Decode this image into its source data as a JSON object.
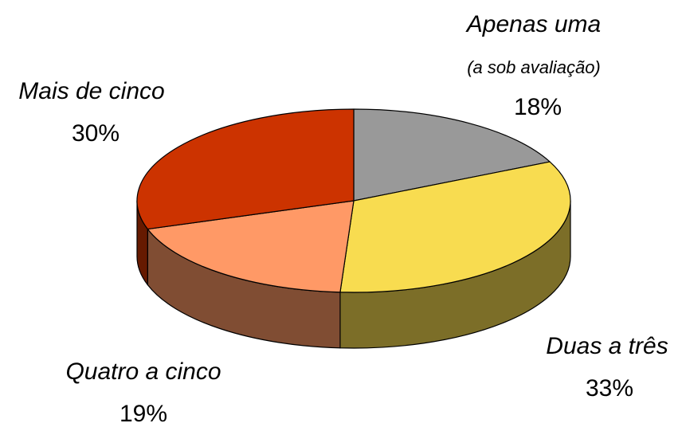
{
  "chart_data": {
    "type": "pie",
    "categories": [
      "Apenas uma",
      "Duas a três",
      "Quatro a cinco",
      "Mais de cinco"
    ],
    "annotations": [
      "(a sob avaliação)"
    ],
    "values": [
      18,
      33,
      19,
      30
    ],
    "value_labels": [
      "18%",
      "33%",
      "19%",
      "30%"
    ],
    "colors": [
      "#999999",
      "#f8dc50",
      "#ff9966",
      "#cc3300"
    ]
  }
}
